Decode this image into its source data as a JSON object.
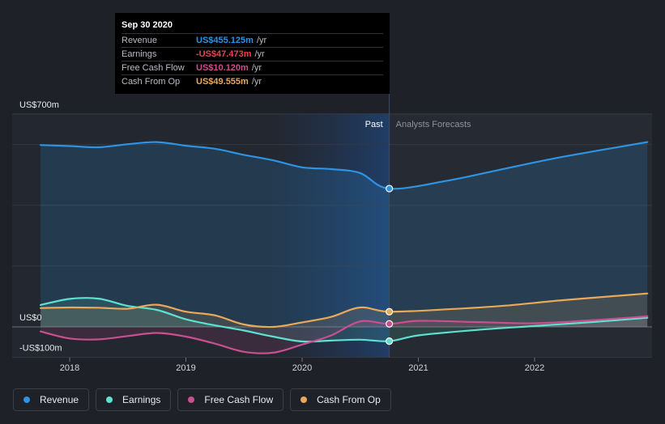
{
  "tooltip": {
    "date": "Sep 30 2020",
    "rows": [
      {
        "name": "Revenue",
        "value": "US$455.125m",
        "unit": "/yr",
        "color": "#2e93e3"
      },
      {
        "name": "Earnings",
        "value": "-US$47.473m",
        "unit": "/yr",
        "color": "#e8434c"
      },
      {
        "name": "Free Cash Flow",
        "value": "US$10.120m",
        "unit": "/yr",
        "color": "#c94f8f"
      },
      {
        "name": "Cash From Op",
        "value": "US$49.555m",
        "unit": "/yr",
        "color": "#e8a95a"
      }
    ]
  },
  "legend": [
    {
      "name": "Revenue",
      "color": "#2e93e3"
    },
    {
      "name": "Earnings",
      "color": "#5ee1d0"
    },
    {
      "name": "Free Cash Flow",
      "color": "#c94f8f"
    },
    {
      "name": "Cash From Op",
      "color": "#e8a95a"
    }
  ],
  "chart_data": {
    "type": "line",
    "ylim": [
      -100,
      700
    ],
    "xlim": [
      2017.25,
      2022.97
    ],
    "y_tick_labels": [
      {
        "value": 700,
        "label": "US$700m"
      },
      {
        "value": 0,
        "label": "US$0"
      },
      {
        "value": -100,
        "label": "-US$100m"
      }
    ],
    "x_ticks": [
      2018,
      2019,
      2020,
      2021,
      2022
    ],
    "gridlines": [
      -100,
      0,
      200,
      400,
      600,
      700
    ],
    "past_label": "Past",
    "forecast_label": "Analysts Forecasts",
    "divider_x": 2020.75,
    "highlight_start_x": 2019.75,
    "series": [
      {
        "name": "Revenue",
        "color": "#2e93e3",
        "fill": true,
        "points": [
          [
            2017.75,
            598
          ],
          [
            2018.0,
            595
          ],
          [
            2018.25,
            591
          ],
          [
            2018.5,
            601
          ],
          [
            2018.75,
            608
          ],
          [
            2019.0,
            596
          ],
          [
            2019.25,
            586
          ],
          [
            2019.5,
            566
          ],
          [
            2019.75,
            548
          ],
          [
            2020.0,
            525
          ],
          [
            2020.25,
            519
          ],
          [
            2020.5,
            506
          ],
          [
            2020.75,
            455
          ]
        ],
        "forecast": [
          [
            2020.75,
            455
          ],
          [
            2021.25,
            481
          ],
          [
            2021.75,
            521
          ],
          [
            2022.25,
            560
          ],
          [
            2022.97,
            608
          ]
        ]
      },
      {
        "name": "Earnings",
        "color": "#5ee1d0",
        "fill": true,
        "points": [
          [
            2017.75,
            72
          ],
          [
            2018.0,
            92
          ],
          [
            2018.25,
            93
          ],
          [
            2018.5,
            69
          ],
          [
            2018.75,
            56
          ],
          [
            2019.0,
            25
          ],
          [
            2019.25,
            5
          ],
          [
            2019.5,
            -12
          ],
          [
            2019.75,
            -32
          ],
          [
            2020.0,
            -48
          ],
          [
            2020.25,
            -45
          ],
          [
            2020.5,
            -42
          ],
          [
            2020.75,
            -47
          ]
        ],
        "forecast": [
          [
            2020.75,
            -47
          ],
          [
            2021.0,
            -28
          ],
          [
            2021.5,
            -10
          ],
          [
            2022.0,
            3
          ],
          [
            2022.5,
            16
          ],
          [
            2022.97,
            30
          ]
        ]
      },
      {
        "name": "Free Cash Flow",
        "color": "#c94f8f",
        "fill": true,
        "points": [
          [
            2017.75,
            -15
          ],
          [
            2018.0,
            -38
          ],
          [
            2018.25,
            -41
          ],
          [
            2018.5,
            -30
          ],
          [
            2018.75,
            -20
          ],
          [
            2019.0,
            -32
          ],
          [
            2019.25,
            -55
          ],
          [
            2019.5,
            -82
          ],
          [
            2019.75,
            -85
          ],
          [
            2020.0,
            -58
          ],
          [
            2020.25,
            -28
          ],
          [
            2020.5,
            18
          ],
          [
            2020.75,
            10
          ]
        ],
        "forecast": [
          [
            2020.75,
            10
          ],
          [
            2021.0,
            20
          ],
          [
            2021.5,
            16
          ],
          [
            2022.0,
            12
          ],
          [
            2022.5,
            22
          ],
          [
            2022.97,
            35
          ]
        ]
      },
      {
        "name": "Cash From Op",
        "color": "#e8a95a",
        "fill": true,
        "points": [
          [
            2017.75,
            62
          ],
          [
            2018.0,
            64
          ],
          [
            2018.25,
            63
          ],
          [
            2018.5,
            60
          ],
          [
            2018.75,
            73
          ],
          [
            2019.0,
            50
          ],
          [
            2019.25,
            38
          ],
          [
            2019.5,
            8
          ],
          [
            2019.75,
            0
          ],
          [
            2020.0,
            15
          ],
          [
            2020.25,
            33
          ],
          [
            2020.5,
            64
          ],
          [
            2020.75,
            50
          ]
        ],
        "forecast": [
          [
            2020.75,
            50
          ],
          [
            2021.25,
            58
          ],
          [
            2021.75,
            70
          ],
          [
            2022.25,
            88
          ],
          [
            2022.97,
            110
          ]
        ]
      }
    ]
  }
}
